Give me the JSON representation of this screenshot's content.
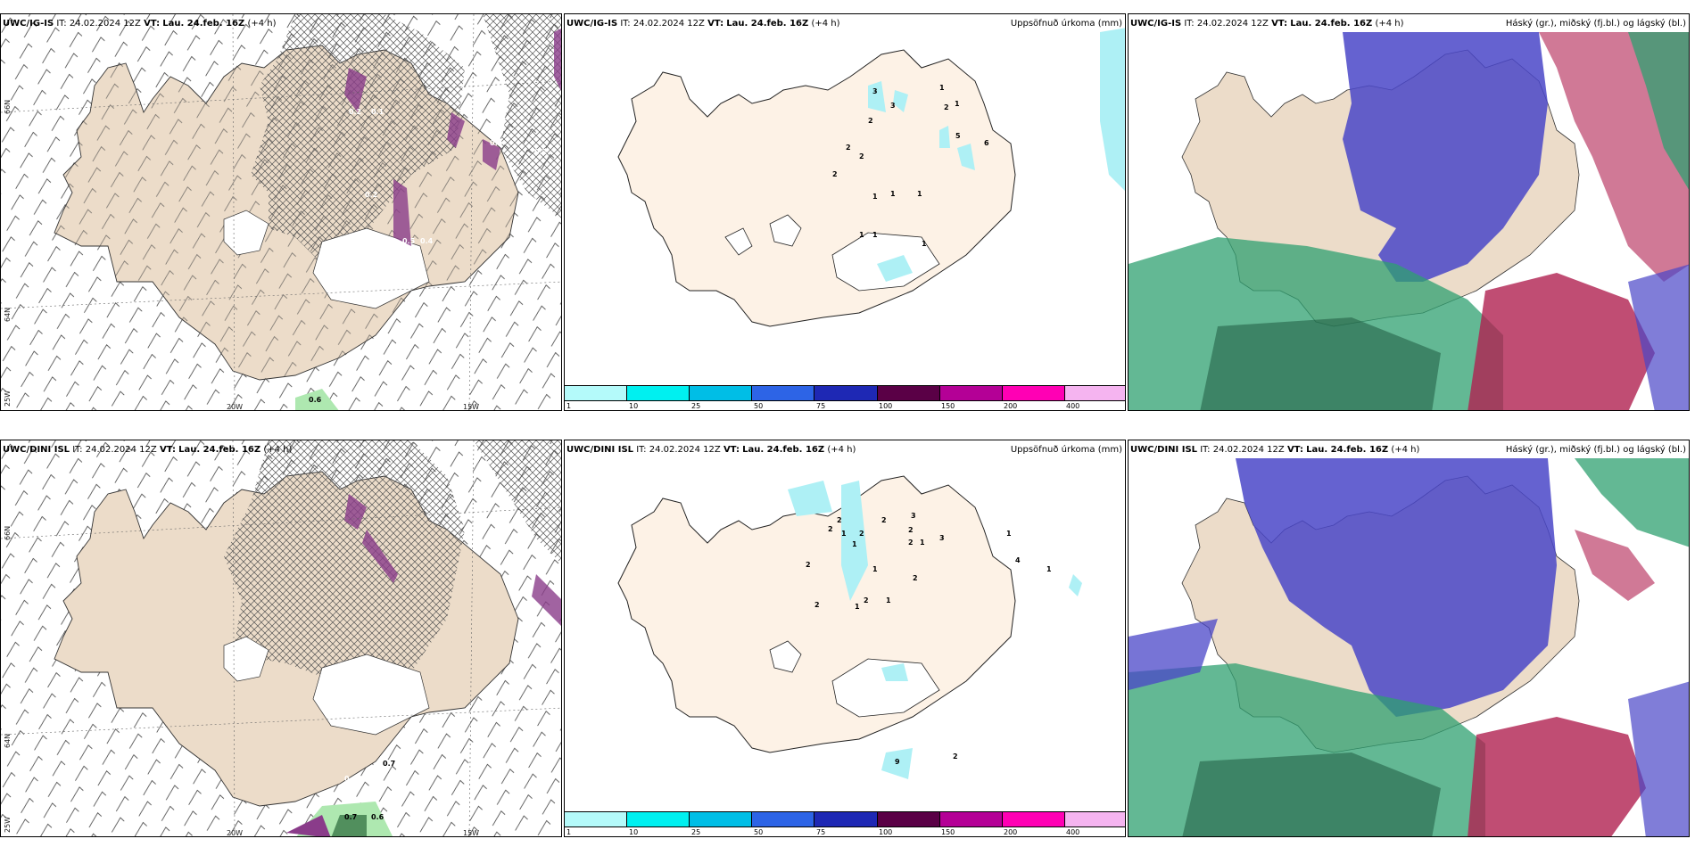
{
  "panels": {
    "top_left": {
      "model": "UWC/IG-IS",
      "it_label": "IT:",
      "it": "24.02.2024 12Z",
      "vt_label": "VT:",
      "vt": "Lau. 24.feb. 16Z",
      "lead": "(+4 h)",
      "axis": {
        "lat66": "66N",
        "lat64": "64N",
        "lon20": "20W",
        "lon15": "15W",
        "lon25": "25W"
      },
      "values": [
        "0.2",
        "0.2",
        "0.1",
        "0.6",
        "0.2",
        "0.5",
        "0.4",
        "0.6"
      ]
    },
    "top_mid": {
      "model": "UWC/IG-IS",
      "it_label": "IT:",
      "it": "24.02.2024 12Z",
      "vt_label": "VT:",
      "vt": "Lau. 24.feb. 16Z",
      "lead": "(+4 h)",
      "title": "Uppsöfnuð úrkoma (mm)",
      "values": [
        "3",
        "3",
        "2",
        "2",
        "2",
        "2",
        "1",
        "1",
        "1",
        "1",
        "5",
        "6",
        "2",
        "1",
        "1",
        "1",
        "1"
      ]
    },
    "top_right": {
      "model": "UWC/IG-IS",
      "it_label": "IT:",
      "it": "24.02.2024 12Z",
      "vt_label": "VT:",
      "vt": "Lau. 24.feb. 16Z",
      "lead": "(+4 h)",
      "title": "Háský (gr.), miðský (fj.bl.) og lágský (bl.)"
    },
    "bottom_left": {
      "model": "UWC/DINI ISL",
      "it_label": "IT:",
      "it": "24.02.2024 12Z",
      "vt_label": "VT:",
      "vt": "Lau. 24.feb. 16Z",
      "lead": "(+4 h)",
      "axis": {
        "lat66": "66N",
        "lat64": "64N",
        "lon20": "20W",
        "lon15": "15W",
        "lon25": "25W"
      },
      "values": [
        "0.7",
        "0.6",
        "0.7",
        "0.4"
      ]
    },
    "bottom_mid": {
      "model": "UWC/DINI ISL",
      "it_label": "IT:",
      "it": "24.02.2024 12Z",
      "vt_label": "VT:",
      "vt": "Lau. 24.feb. 16Z",
      "lead": "(+4 h)",
      "title": "Uppsöfnuð úrkoma (mm)",
      "values": [
        "2",
        "2",
        "2",
        "1",
        "1",
        "2",
        "3",
        "2",
        "3",
        "1",
        "2",
        "1",
        "2",
        "4",
        "1",
        "1",
        "2",
        "2",
        "1",
        "1",
        "2",
        "9",
        "2"
      ]
    },
    "bottom_right": {
      "model": "UWC/DINI ISL",
      "it_label": "IT:",
      "it": "24.02.2024 12Z",
      "vt_label": "VT:",
      "vt": "Lau. 24.feb. 16Z",
      "lead": "(+4 h)",
      "title": "Háský (gr.), miðský (fj.bl.) og lágský (bl.)"
    }
  },
  "legend": {
    "ticks": [
      "1",
      "10",
      "25",
      "50",
      "75",
      "100",
      "150",
      "200",
      "400"
    ],
    "colors": [
      "#b4fafa",
      "#00f0f0",
      "#00bee6",
      "#2d64e6",
      "#1e28b4",
      "#5a0046",
      "#b40096",
      "#ff00b4",
      "#f5b4f0"
    ]
  },
  "colors": {
    "land": "#ecdcc9",
    "land_mid": "#fdf2e6",
    "precip": "#aef0f5",
    "high_cloud": "#2fa070",
    "mid_cloud": "#b02050",
    "low_cloud": "#4a46c8",
    "purple_precip": "#8a3c8a"
  }
}
